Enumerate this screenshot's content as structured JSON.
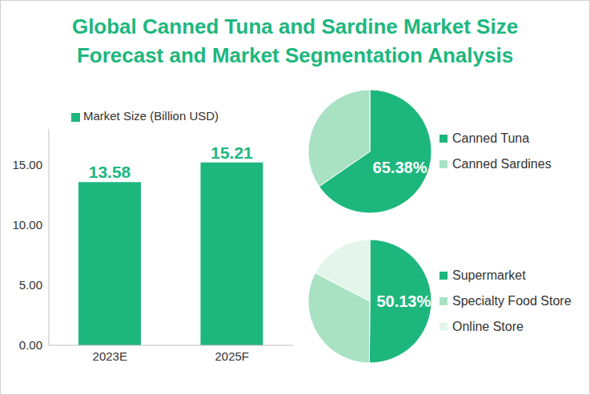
{
  "title": "Global Canned Tuna and Sardine Market Size Forecast and Market Segmentation Analysis",
  "chart_data": [
    {
      "type": "bar",
      "categories": [
        "2023E",
        "2025F"
      ],
      "series": [
        {
          "name": "Market Size (Billion USD)",
          "color": "#1db77e",
          "values": [
            13.58,
            15.21
          ]
        }
      ],
      "ylim": [
        0,
        18
      ],
      "yticks": [
        {
          "value": 0,
          "label": "0.00"
        },
        {
          "value": 5,
          "label": "5.00"
        },
        {
          "value": 10,
          "label": "10.00"
        },
        {
          "value": 15,
          "label": "15.00"
        }
      ],
      "grid": false,
      "data_labels": true,
      "legend": "top"
    },
    {
      "type": "pie",
      "categories": [
        "Canned Tuna",
        "Canned Sardines"
      ],
      "values": [
        65.38,
        34.62
      ],
      "value_labels": [
        "65.38%",
        null
      ],
      "colors": [
        "#1db77e",
        "#a8e2c3"
      ],
      "legend": "right"
    },
    {
      "type": "pie",
      "categories": [
        "Supermarket",
        "Specialty Food Store",
        "Online Store"
      ],
      "values": [
        50.13,
        32.5,
        17.37
      ],
      "value_labels": [
        "50.13%",
        null,
        null
      ],
      "colors": [
        "#1db77e",
        "#a8e2c3",
        "#e4f6eb"
      ],
      "legend": "right"
    }
  ]
}
